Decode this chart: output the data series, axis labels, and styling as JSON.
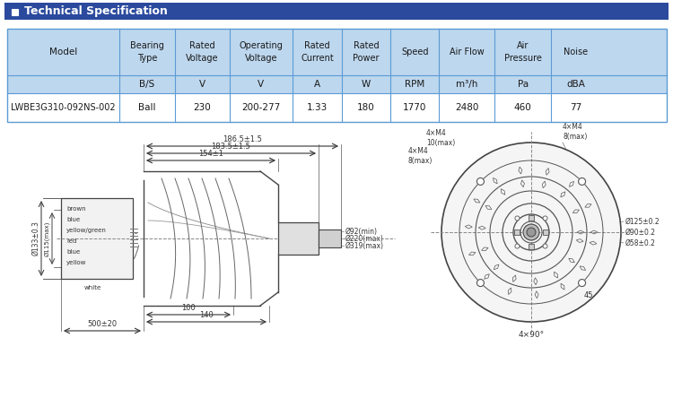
{
  "title": "Technical Specification",
  "header_bg": "#2B4A9E",
  "header_text_color": "#FFFFFF",
  "table_header_bg": "#BDD7EE",
  "table_border_color": "#5B9BD5",
  "col_headers_line1": [
    "",
    "Bearing",
    "Rated",
    "Operating",
    "Rated",
    "Rated",
    "Speed",
    "Air Flow",
    "Air",
    "Noise"
  ],
  "col_headers_line2": [
    "Model",
    "Type",
    "Voltage",
    "Voltage",
    "Current",
    "Power",
    "",
    "",
    "Pressure",
    ""
  ],
  "col_headers_line3": [
    "",
    "B/S",
    "V",
    "V",
    "A",
    "W",
    "RPM",
    "m³/h",
    "Pa",
    "dBA"
  ],
  "data_row": [
    "LWBE3G310-092NS-002",
    "Ball",
    "230",
    "200-277",
    "1.33",
    "180",
    "1770",
    "2480",
    "460",
    "77"
  ],
  "dim_top1": "186.5±1.5",
  "dim_top2": "183.5±1.5",
  "dim_top3": "154±1",
  "dim_left_outer": "Ø133±0.3",
  "dim_left_inner": "Ø115(max)",
  "dim_bottom_wire": "500±20",
  "dim_bottom_100": "100",
  "dim_bottom_140": "140",
  "dim_right1": "Ø92(min)",
  "dim_right2": "Ø220(max)",
  "dim_right3": "Ø319(max)",
  "dim_circle1": "Ø125±0.2",
  "dim_circle2": "Ø90±0.2",
  "dim_circle3": "Ø58±0.2",
  "dim_bolt1": "4×M4\n8(max)",
  "dim_bolt2": "4×M4\n10(max)",
  "dim_bolt3": "4×M4\n8(max)",
  "dim_angle": "4×90°",
  "dim_45": "45",
  "wire_labels": [
    "brown",
    "blue",
    "yellow/green",
    "red",
    "blue",
    "yellow"
  ],
  "wire_white": "white",
  "bg_color": "#FFFFFF",
  "lc": "#444444",
  "dc": "#333333"
}
